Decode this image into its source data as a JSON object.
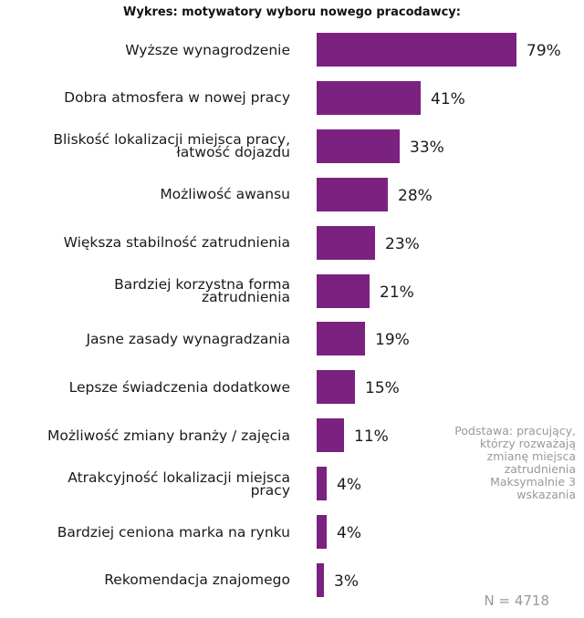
{
  "chart_data": {
    "type": "bar",
    "orientation": "horizontal",
    "title": "Wykres: motywatory wyboru nowego pracodawcy:",
    "categories": [
      [
        "Wyższe wynagrodzenie"
      ],
      [
        "Dobra atmosfera w nowej pracy"
      ],
      [
        "Bliskość lokalizacji miejsca pracy,",
        "łatwość  dojazdu"
      ],
      [
        "Możliwość awansu"
      ],
      [
        "Większa stabilność zatrudnienia"
      ],
      [
        "Bardziej korzystna forma",
        "zatrudnienia"
      ],
      [
        "Jasne zasady wynagradzania"
      ],
      [
        "Lepsze świadczenia dodatkowe"
      ],
      [
        "Możliwość zmiany branży / zajęcia"
      ],
      [
        "Atrakcyjność lokalizacji miejsca",
        "pracy"
      ],
      [
        "Bardziej ceniona marka na rynku"
      ],
      [
        "Rekomendacja znajomego"
      ]
    ],
    "values": [
      79,
      41,
      33,
      28,
      23,
      21,
      19,
      15,
      11,
      4,
      4,
      3
    ],
    "value_labels": [
      "79%",
      "41%",
      "33%",
      "28%",
      "23%",
      "21%",
      "19%",
      "15%",
      "11%",
      "4%",
      "4%",
      "3%"
    ],
    "unit": "%",
    "xlabel": "",
    "ylabel": "",
    "xlim": [
      0,
      100
    ],
    "grid": false,
    "legend": null,
    "bar_color": "#7b2180",
    "annotations": [
      [
        "Podstawa: pracujący,",
        "którzy  rozważają",
        "zmianę miejsca",
        "zatrudnienia",
        "Maksymalnie 3",
        "wskazania"
      ],
      "N = 4718"
    ]
  },
  "note_lines": [
    "Podstawa: pracujący,",
    "którzy  rozważają",
    "zmianę miejsca",
    "zatrudnienia",
    "Maksymalnie 3",
    "wskazania"
  ],
  "sample_size": "N = 4718"
}
